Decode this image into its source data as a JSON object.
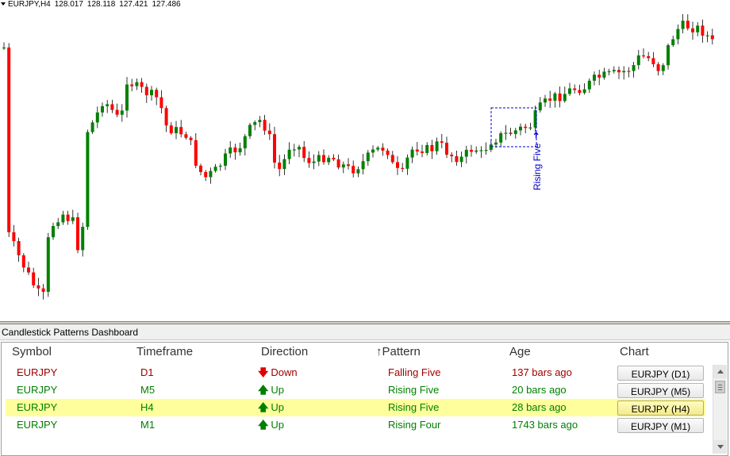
{
  "chart": {
    "symbol_tf": "EURJPY,H4",
    "open": "128.017",
    "high": "128.118",
    "low": "127.421",
    "close": "127.486",
    "pattern_label": "Rising Five",
    "colors": {
      "bull": "#008000",
      "bear": "#ff0000",
      "pattern": "#0000cc"
    }
  },
  "dashboard": {
    "title": "Candlestick Patterns Dashboard",
    "columns": {
      "symbol": "Symbol",
      "timeframe": "Timeframe",
      "direction": "Direction",
      "pattern": "Pattern",
      "age": "Age",
      "chart": "Chart"
    },
    "sort_indicator": "↑",
    "rows": [
      {
        "symbol": "EURJPY",
        "timeframe": "D1",
        "arrow": "down-arrow",
        "direction": "Down",
        "pattern": "Falling Five",
        "age": "137 bars ago",
        "chart": "EURJPY (D1)",
        "trend": "red",
        "highlight": false
      },
      {
        "symbol": "EURJPY",
        "timeframe": "M5",
        "arrow": "up-arrow",
        "direction": "Up",
        "pattern": "Rising Five",
        "age": "20 bars ago",
        "chart": "EURJPY (M5)",
        "trend": "green",
        "highlight": false
      },
      {
        "symbol": "EURJPY",
        "timeframe": "H4",
        "arrow": "up-arrow",
        "direction": "Up",
        "pattern": "Rising Five",
        "age": "28 bars ago",
        "chart": "EURJPY (H4)",
        "trend": "green",
        "highlight": true
      },
      {
        "symbol": "EURJPY",
        "timeframe": "M1",
        "arrow": "up-arrow",
        "direction": "Up",
        "pattern": "Rising Four",
        "age": "1743 bars ago",
        "chart": "EURJPY (M1)",
        "trend": "green",
        "highlight": false
      }
    ]
  }
}
